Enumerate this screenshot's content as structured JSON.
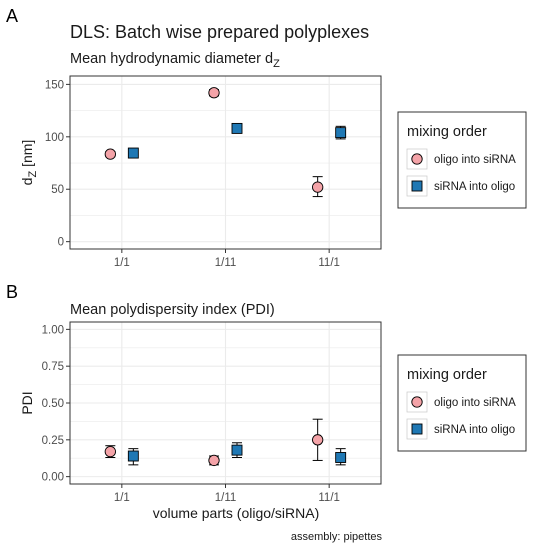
{
  "figure": {
    "title": "DLS: Batch wise prepared polyplexes",
    "caption": "assembly: pipettes"
  },
  "colors": {
    "series1": "#f4a3a8",
    "series2": "#1f78b4",
    "grid": "#ebebeb",
    "panel_border": "#333333"
  },
  "legend": {
    "title": "mixing order",
    "entries": [
      {
        "label": "oligo into siRNA",
        "shape": "circle"
      },
      {
        "label": "siRNA into oligo",
        "shape": "square"
      }
    ]
  },
  "chart_data": [
    {
      "panel": "A",
      "type": "scatter",
      "subtitle": "Mean hydrodynamic diameter d",
      "subtitle_sub": "Z",
      "xlabel": "",
      "ylabel": "d",
      "ylabel_sub": "Z",
      "ylabel_unit": " [nm]",
      "categories": [
        "1/1",
        "1/11",
        "11/1"
      ],
      "ylim": [
        -7,
        158
      ],
      "yticks": [
        0,
        50,
        100,
        150
      ],
      "ytick_labels": [
        "0",
        "50",
        "100",
        "150"
      ],
      "grid": true,
      "legend_position": "right",
      "series": [
        {
          "name": "oligo into siRNA",
          "shape": "circle",
          "values": [
            83.5,
            142,
            52
          ],
          "err_lo": [
            81,
            139,
            43
          ],
          "err_hi": [
            86,
            145,
            62
          ]
        },
        {
          "name": "siRNA into oligo",
          "shape": "square",
          "values": [
            84.5,
            108,
            104
          ],
          "err_lo": [
            80,
            105,
            98
          ],
          "err_hi": [
            89,
            111,
            110
          ]
        }
      ]
    },
    {
      "panel": "B",
      "type": "scatter",
      "subtitle": "Mean polydispersity index (PDI)",
      "xlabel": "volume parts (oligo/siRNA)",
      "ylabel": "PDI",
      "categories": [
        "1/1",
        "1/11",
        "11/1"
      ],
      "ylim": [
        -0.05,
        1.05
      ],
      "yticks": [
        0,
        0.25,
        0.5,
        0.75,
        1.0
      ],
      "ytick_labels": [
        "0.00",
        "0.25",
        "0.50",
        "0.75",
        "1.00"
      ],
      "grid": true,
      "legend_position": "right",
      "series": [
        {
          "name": "oligo into siRNA",
          "shape": "circle",
          "values": [
            0.17,
            0.11,
            0.25
          ],
          "err_lo": [
            0.13,
            0.08,
            0.11
          ],
          "err_hi": [
            0.21,
            0.14,
            0.39
          ]
        },
        {
          "name": "siRNA into oligo",
          "shape": "square",
          "values": [
            0.14,
            0.18,
            0.13
          ],
          "err_lo": [
            0.08,
            0.13,
            0.08
          ],
          "err_hi": [
            0.19,
            0.23,
            0.19
          ]
        }
      ]
    }
  ]
}
